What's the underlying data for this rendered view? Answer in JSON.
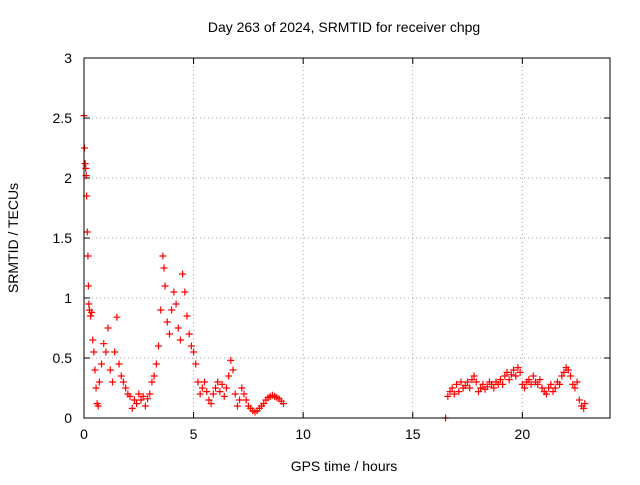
{
  "chart_data": {
    "type": "scatter",
    "title": "Day 263 of 2024, SRMTID for receiver chpg",
    "xlabel": "GPS time / hours",
    "ylabel": "SRMTID / TECUs",
    "xlim": [
      0,
      24
    ],
    "ylim": [
      0,
      3
    ],
    "xticks": [
      0,
      5,
      10,
      15,
      20
    ],
    "yticks": [
      0,
      0.5,
      1,
      1.5,
      2,
      2.5,
      3
    ],
    "ytick_labels": [
      "0",
      "0.5",
      "1",
      "1.5",
      "2",
      "2.5",
      "3"
    ],
    "grid": true,
    "marker": "+",
    "color": "#ff0000",
    "series": [
      {
        "name": "SRMTID",
        "points": [
          [
            0.0,
            2.52
          ],
          [
            0.02,
            2.25
          ],
          [
            0.05,
            2.12
          ],
          [
            0.08,
            2.08
          ],
          [
            0.1,
            2.02
          ],
          [
            0.12,
            1.85
          ],
          [
            0.15,
            1.55
          ],
          [
            0.18,
            1.35
          ],
          [
            0.2,
            1.1
          ],
          [
            0.22,
            0.95
          ],
          [
            0.25,
            0.9
          ],
          [
            0.3,
            0.85
          ],
          [
            0.35,
            0.88
          ],
          [
            0.4,
            0.65
          ],
          [
            0.45,
            0.55
          ],
          [
            0.5,
            0.4
          ],
          [
            0.55,
            0.25
          ],
          [
            0.6,
            0.12
          ],
          [
            0.65,
            0.1
          ],
          [
            0.7,
            0.3
          ],
          [
            0.8,
            0.45
          ],
          [
            0.9,
            0.62
          ],
          [
            1.0,
            0.55
          ],
          [
            1.1,
            0.75
          ],
          [
            1.2,
            0.4
          ],
          [
            1.3,
            0.3
          ],
          [
            1.4,
            0.55
          ],
          [
            1.5,
            0.84
          ],
          [
            1.6,
            0.45
          ],
          [
            1.7,
            0.35
          ],
          [
            1.8,
            0.3
          ],
          [
            1.9,
            0.25
          ],
          [
            2.0,
            0.2
          ],
          [
            2.1,
            0.18
          ],
          [
            2.2,
            0.08
          ],
          [
            2.3,
            0.15
          ],
          [
            2.4,
            0.12
          ],
          [
            2.5,
            0.2
          ],
          [
            2.6,
            0.15
          ],
          [
            2.7,
            0.18
          ],
          [
            2.8,
            0.1
          ],
          [
            2.9,
            0.16
          ],
          [
            3.0,
            0.2
          ],
          [
            3.1,
            0.3
          ],
          [
            3.2,
            0.35
          ],
          [
            3.3,
            0.45
          ],
          [
            3.4,
            0.6
          ],
          [
            3.5,
            0.9
          ],
          [
            3.6,
            1.35
          ],
          [
            3.65,
            1.25
          ],
          [
            3.7,
            1.1
          ],
          [
            3.8,
            0.8
          ],
          [
            3.9,
            0.7
          ],
          [
            4.0,
            0.9
          ],
          [
            4.1,
            1.05
          ],
          [
            4.2,
            0.95
          ],
          [
            4.3,
            0.75
          ],
          [
            4.4,
            0.65
          ],
          [
            4.5,
            1.2
          ],
          [
            4.6,
            1.05
          ],
          [
            4.7,
            0.85
          ],
          [
            4.8,
            0.7
          ],
          [
            4.9,
            0.6
          ],
          [
            5.0,
            0.55
          ],
          [
            5.1,
            0.45
          ],
          [
            5.2,
            0.3
          ],
          [
            5.3,
            0.2
          ],
          [
            5.4,
            0.25
          ],
          [
            5.5,
            0.3
          ],
          [
            5.6,
            0.22
          ],
          [
            5.7,
            0.15
          ],
          [
            5.8,
            0.12
          ],
          [
            5.9,
            0.2
          ],
          [
            6.0,
            0.25
          ],
          [
            6.1,
            0.3
          ],
          [
            6.2,
            0.22
          ],
          [
            6.3,
            0.28
          ],
          [
            6.4,
            0.18
          ],
          [
            6.5,
            0.25
          ],
          [
            6.6,
            0.35
          ],
          [
            6.7,
            0.48
          ],
          [
            6.8,
            0.4
          ],
          [
            6.9,
            0.2
          ],
          [
            7.0,
            0.1
          ],
          [
            7.1,
            0.15
          ],
          [
            7.2,
            0.25
          ],
          [
            7.3,
            0.2
          ],
          [
            7.4,
            0.15
          ],
          [
            7.5,
            0.1
          ],
          [
            7.6,
            0.08
          ],
          [
            7.7,
            0.06
          ],
          [
            7.8,
            0.05
          ],
          [
            7.9,
            0.06
          ],
          [
            8.0,
            0.08
          ],
          [
            8.1,
            0.1
          ],
          [
            8.2,
            0.12
          ],
          [
            8.3,
            0.15
          ],
          [
            8.4,
            0.17
          ],
          [
            8.5,
            0.18
          ],
          [
            8.6,
            0.19
          ],
          [
            8.7,
            0.18
          ],
          [
            8.8,
            0.17
          ],
          [
            8.9,
            0.16
          ],
          [
            9.0,
            0.14
          ],
          [
            9.1,
            0.12
          ],
          [
            16.5,
            0.0
          ],
          [
            16.6,
            0.18
          ],
          [
            16.7,
            0.22
          ],
          [
            16.8,
            0.25
          ],
          [
            16.9,
            0.2
          ],
          [
            17.0,
            0.28
          ],
          [
            17.1,
            0.22
          ],
          [
            17.2,
            0.3
          ],
          [
            17.3,
            0.25
          ],
          [
            17.4,
            0.27
          ],
          [
            17.5,
            0.3
          ],
          [
            17.6,
            0.25
          ],
          [
            17.7,
            0.32
          ],
          [
            17.8,
            0.35
          ],
          [
            17.9,
            0.3
          ],
          [
            18.0,
            0.22
          ],
          [
            18.1,
            0.25
          ],
          [
            18.2,
            0.28
          ],
          [
            18.3,
            0.24
          ],
          [
            18.4,
            0.26
          ],
          [
            18.5,
            0.3
          ],
          [
            18.6,
            0.28
          ],
          [
            18.7,
            0.25
          ],
          [
            18.8,
            0.3
          ],
          [
            18.9,
            0.28
          ],
          [
            19.0,
            0.32
          ],
          [
            19.1,
            0.28
          ],
          [
            19.2,
            0.35
          ],
          [
            19.3,
            0.38
          ],
          [
            19.4,
            0.32
          ],
          [
            19.5,
            0.36
          ],
          [
            19.6,
            0.4
          ],
          [
            19.7,
            0.35
          ],
          [
            19.8,
            0.42
          ],
          [
            19.9,
            0.38
          ],
          [
            20.0,
            0.28
          ],
          [
            20.1,
            0.25
          ],
          [
            20.2,
            0.3
          ],
          [
            20.3,
            0.32
          ],
          [
            20.4,
            0.28
          ],
          [
            20.5,
            0.35
          ],
          [
            20.6,
            0.3
          ],
          [
            20.7,
            0.28
          ],
          [
            20.8,
            0.32
          ],
          [
            20.9,
            0.25
          ],
          [
            21.0,
            0.22
          ],
          [
            21.1,
            0.2
          ],
          [
            21.2,
            0.25
          ],
          [
            21.3,
            0.28
          ],
          [
            21.4,
            0.22
          ],
          [
            21.5,
            0.25
          ],
          [
            21.6,
            0.3
          ],
          [
            21.7,
            0.28
          ],
          [
            21.8,
            0.35
          ],
          [
            21.9,
            0.38
          ],
          [
            22.0,
            0.42
          ],
          [
            22.1,
            0.4
          ],
          [
            22.2,
            0.35
          ],
          [
            22.3,
            0.28
          ],
          [
            22.4,
            0.25
          ],
          [
            22.5,
            0.3
          ],
          [
            22.6,
            0.15
          ],
          [
            22.7,
            0.1
          ],
          [
            22.8,
            0.08
          ],
          [
            22.85,
            0.12
          ]
        ]
      }
    ]
  }
}
